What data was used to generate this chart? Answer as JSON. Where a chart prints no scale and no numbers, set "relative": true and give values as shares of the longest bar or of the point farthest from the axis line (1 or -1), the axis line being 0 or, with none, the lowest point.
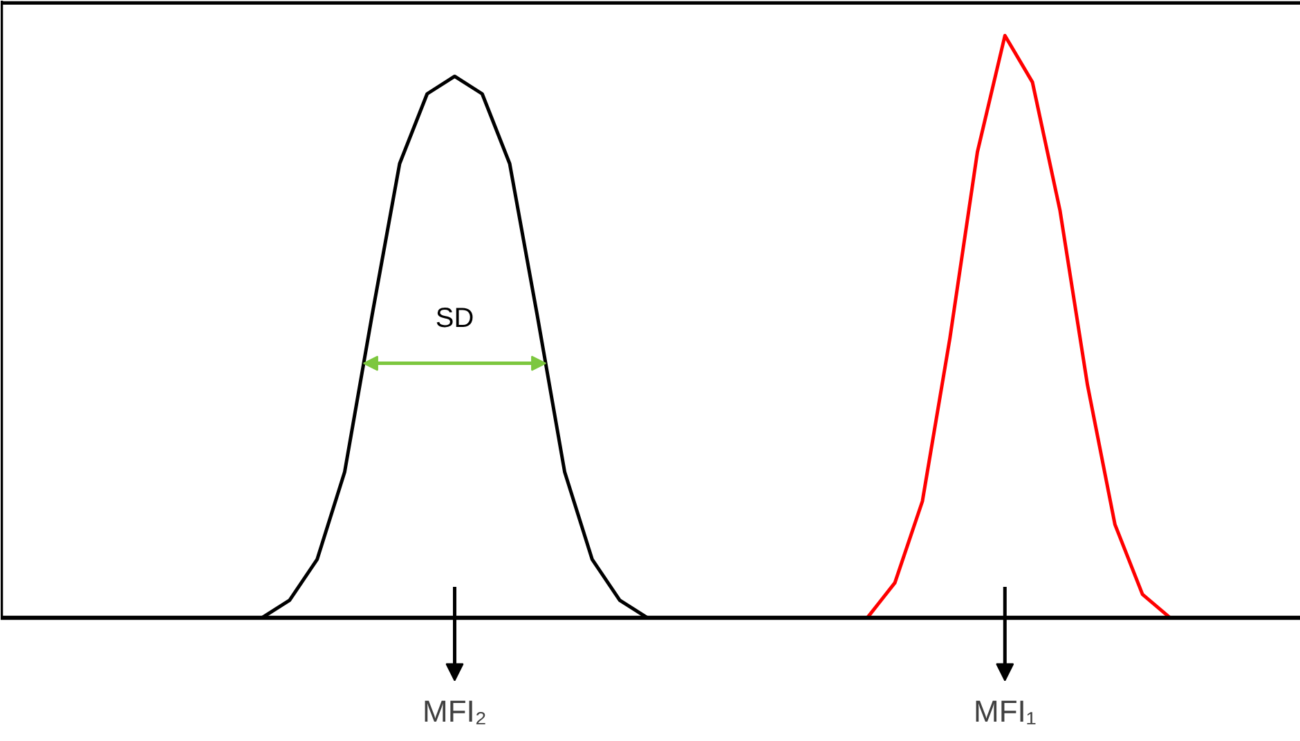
{
  "chart_data": {
    "type": "line",
    "relative": true,
    "categories": [
      null,
      null,
      null,
      null,
      null,
      null,
      null,
      null,
      null,
      null,
      null,
      null,
      null,
      null,
      null,
      null,
      null,
      null,
      null,
      null,
      null,
      null,
      null,
      null,
      null,
      null,
      null,
      null,
      null,
      null,
      null,
      null,
      null,
      null,
      null,
      null,
      null,
      null,
      null,
      null,
      null,
      null,
      null,
      null,
      null,
      null,
      null
    ],
    "series": [
      {
        "color": "#000000",
        "values": [
          null,
          null,
          null,
          null,
          null,
          null,
          null,
          null,
          null,
          0.0,
          0.03,
          0.1,
          0.25,
          0.52,
          0.78,
          0.9,
          0.93,
          0.9,
          0.78,
          0.52,
          0.25,
          0.1,
          0.03,
          0.0,
          null,
          null,
          null,
          null,
          null,
          null,
          null,
          null,
          null,
          null,
          null,
          null,
          null,
          null,
          null,
          null,
          null,
          null,
          null,
          null,
          null,
          null,
          null
        ]
      },
      {
        "color": "#ff0000",
        "values": [
          null,
          null,
          null,
          null,
          null,
          null,
          null,
          null,
          null,
          null,
          null,
          null,
          null,
          null,
          null,
          null,
          null,
          null,
          null,
          null,
          null,
          null,
          null,
          null,
          null,
          null,
          null,
          null,
          null,
          null,
          null,
          0.0,
          0.06,
          0.2,
          0.48,
          0.8,
          1.0,
          0.92,
          0.7,
          0.4,
          0.16,
          0.04,
          0.0,
          null,
          null,
          null,
          null
        ]
      }
    ],
    "annotations": [
      "SD",
      "MFI₂",
      "MFI₁"
    ],
    "grid": false
  }
}
